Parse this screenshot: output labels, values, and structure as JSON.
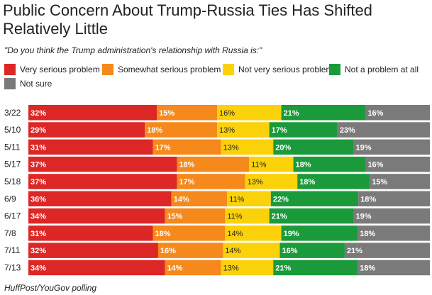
{
  "chart_data": {
    "type": "bar",
    "orientation": "horizontal",
    "stacked": true,
    "title": "Public Concern About Trump-Russia Ties Has Shifted Relatively Little",
    "subtitle": "\"Do you think the Trump administration's relationship with Russia is:\"",
    "categories": [
      "3/22",
      "5/10",
      "5/11",
      "5/17",
      "5/18",
      "6/9",
      "6/17",
      "7/8",
      "7/11",
      "7/13"
    ],
    "series": [
      {
        "name": "Very serious problem",
        "color": "#dd2626",
        "values": [
          32,
          29,
          31,
          37,
          37,
          36,
          34,
          31,
          32,
          34
        ]
      },
      {
        "name": "Somewhat serious problem",
        "color": "#f5891b",
        "values": [
          15,
          18,
          17,
          18,
          17,
          14,
          15,
          18,
          16,
          14
        ]
      },
      {
        "name": "Not very serious problem",
        "color": "#fbd10a",
        "values": [
          16,
          13,
          13,
          11,
          13,
          11,
          11,
          14,
          14,
          13
        ]
      },
      {
        "name": "Not a problem at all",
        "color": "#1a9a3a",
        "values": [
          21,
          17,
          20,
          18,
          18,
          22,
          21,
          19,
          16,
          21
        ]
      },
      {
        "name": "Not sure",
        "color": "#7a7a7a",
        "values": [
          16,
          23,
          19,
          16,
          15,
          18,
          19,
          18,
          21,
          18
        ]
      }
    ],
    "value_suffix": "%",
    "legend_position": "top",
    "grid": false
  },
  "source": "HuffPost/YouGov polling"
}
